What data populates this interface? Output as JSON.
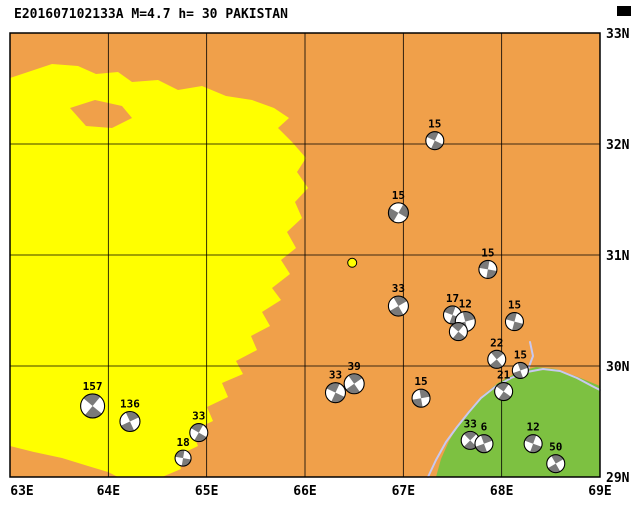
{
  "title": "E201607102133A M=4.7 h= 30 PAKISTAN",
  "map": {
    "lon_min": 63,
    "lon_max": 69,
    "lat_min": 29,
    "lat_max": 33,
    "grid_lons": [
      64,
      65,
      66,
      67,
      68
    ],
    "grid_lats": [
      30,
      31,
      32
    ],
    "x_ticks": [
      {
        "lon": 63,
        "label": "63E"
      },
      {
        "lon": 64,
        "label": "64E"
      },
      {
        "lon": 65,
        "label": "65E"
      },
      {
        "lon": 66,
        "label": "66E"
      },
      {
        "lon": 67,
        "label": "67E"
      },
      {
        "lon": 68,
        "label": "68E"
      },
      {
        "lon": 69,
        "label": "69E"
      }
    ],
    "y_ticks": [
      {
        "lat": 33,
        "label": "33N"
      },
      {
        "lat": 32,
        "label": "32N"
      },
      {
        "lat": 31,
        "label": "31N"
      },
      {
        "lat": 30,
        "label": "30N"
      },
      {
        "lat": 29,
        "label": "29N"
      }
    ]
  },
  "colors": {
    "terrain_high_orange": "#F0A04A",
    "terrain_low_yellow": "#FFFF00",
    "terrain_green": "#7DC141",
    "admin_border_lavender": "#C8C8F0",
    "beachball_gray": "#7A7A7A",
    "epicenter_yellow": "#FFFF00",
    "grid_black": "#000000"
  },
  "epicenter": {
    "lon": 66.48,
    "lat": 30.93
  },
  "events": [
    {
      "lon": 67.32,
      "lat": 32.03,
      "depth": "15",
      "rot": 25,
      "r": 9
    },
    {
      "lon": 66.95,
      "lat": 31.38,
      "depth": "15",
      "rot": 120,
      "r": 10
    },
    {
      "lon": 67.86,
      "lat": 30.87,
      "depth": "15",
      "rot": 10,
      "r": 9
    },
    {
      "lon": 66.95,
      "lat": 30.54,
      "depth": "33",
      "rot": 60,
      "r": 10
    },
    {
      "lon": 67.5,
      "lat": 30.46,
      "depth": "17",
      "rot": 20,
      "r": 9
    },
    {
      "lon": 67.63,
      "lat": 30.4,
      "depth": "12",
      "rot": 75,
      "r": 10
    },
    {
      "lon": 67.56,
      "lat": 30.31,
      "depth": "",
      "rot": 40,
      "r": 9
    },
    {
      "lon": 68.13,
      "lat": 30.4,
      "depth": "15",
      "rot": 15,
      "r": 9
    },
    {
      "lon": 67.95,
      "lat": 30.06,
      "depth": "22",
      "rot": 50,
      "r": 9
    },
    {
      "lon": 68.19,
      "lat": 29.96,
      "depth": "15",
      "rot": 70,
      "r": 8
    },
    {
      "lon": 68.02,
      "lat": 29.77,
      "depth": "21",
      "rot": 35,
      "r": 9
    },
    {
      "lon": 66.5,
      "lat": 29.84,
      "depth": "39",
      "rot": 55,
      "r": 10
    },
    {
      "lon": 66.31,
      "lat": 29.76,
      "depth": "33",
      "rot": 25,
      "r": 10
    },
    {
      "lon": 67.18,
      "lat": 29.71,
      "depth": "15",
      "rot": 80,
      "r": 9
    },
    {
      "lon": 63.84,
      "lat": 29.64,
      "depth": "157",
      "rot": 40,
      "r": 12
    },
    {
      "lon": 64.22,
      "lat": 29.5,
      "depth": "136",
      "rot": 65,
      "r": 10
    },
    {
      "lon": 64.92,
      "lat": 29.4,
      "depth": "33",
      "rot": 30,
      "r": 9
    },
    {
      "lon": 64.76,
      "lat": 29.17,
      "depth": "18",
      "rot": 10,
      "r": 8
    },
    {
      "lon": 67.68,
      "lat": 29.33,
      "depth": "33",
      "rot": 45,
      "r": 9
    },
    {
      "lon": 67.82,
      "lat": 29.3,
      "depth": "6",
      "rot": 70,
      "r": 9
    },
    {
      "lon": 68.32,
      "lat": 29.3,
      "depth": "12",
      "rot": 20,
      "r": 9
    },
    {
      "lon": 68.55,
      "lat": 29.12,
      "depth": "50",
      "rot": 60,
      "r": 9
    }
  ]
}
